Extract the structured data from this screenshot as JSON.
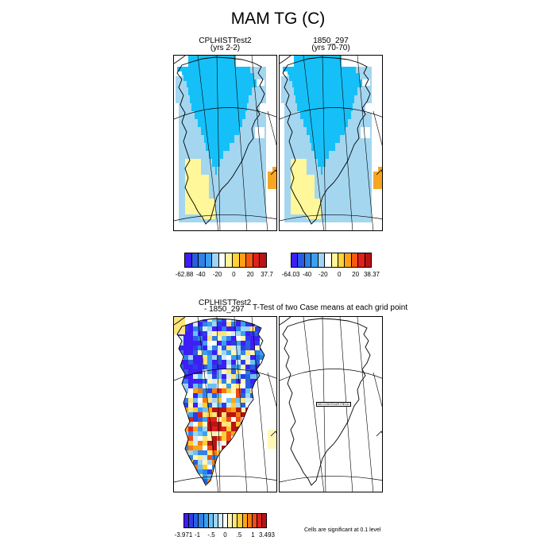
{
  "title": "MAM TG (C)",
  "panels": {
    "top_left": {
      "title": "CPLHISTTest2",
      "subtitle": "(yrs 2-2)"
    },
    "top_right": {
      "title": "1850_297",
      "subtitle": "(yrs 70-70)"
    },
    "bottom_left": {
      "title": "CPLHISTTest2",
      "subtitle": "- 1850_297"
    },
    "bottom_right": {
      "title": "T-Test of two Case means at each grid point",
      "box_label": "NO CONTOUR FIELD"
    }
  },
  "colorbars": {
    "top_left": {
      "colors": [
        "#3e1ef5",
        "#2a5be3",
        "#2e82e8",
        "#3aa0f0",
        "#a0d4f2",
        "#ffffff",
        "#fff59a",
        "#ffd23a",
        "#ffa018",
        "#f45a10",
        "#e0201c",
        "#b81414"
      ],
      "labels": [
        "-62.88",
        "-40",
        "-20",
        "0",
        "20",
        "37.7"
      ]
    },
    "top_right": {
      "colors": [
        "#3e1ef5",
        "#2a5be3",
        "#2e82e8",
        "#3aa0f0",
        "#a0d4f2",
        "#ffffff",
        "#fff59a",
        "#ffd23a",
        "#ffa018",
        "#f45a10",
        "#e0201c",
        "#b81414"
      ],
      "labels": [
        "-64.03",
        "-40",
        "-20",
        "0",
        "20",
        "38.37"
      ]
    },
    "bottom_left": {
      "colors": [
        "#3e1ef5",
        "#2b3ee6",
        "#2860e0",
        "#2e82e8",
        "#3aa0f0",
        "#6cc0f4",
        "#a0d4f2",
        "#d4ecf8",
        "#ffffff",
        "#fff7b8",
        "#ffe47a",
        "#ffcc3a",
        "#ffa418",
        "#f47a10",
        "#ee4c14",
        "#e0201c",
        "#b81414"
      ],
      "labels": [
        "-3.971",
        "-1",
        "-.5",
        "0",
        ".5",
        "1",
        "3.493"
      ]
    }
  },
  "note": "Cells are significant at 0.1 level"
}
